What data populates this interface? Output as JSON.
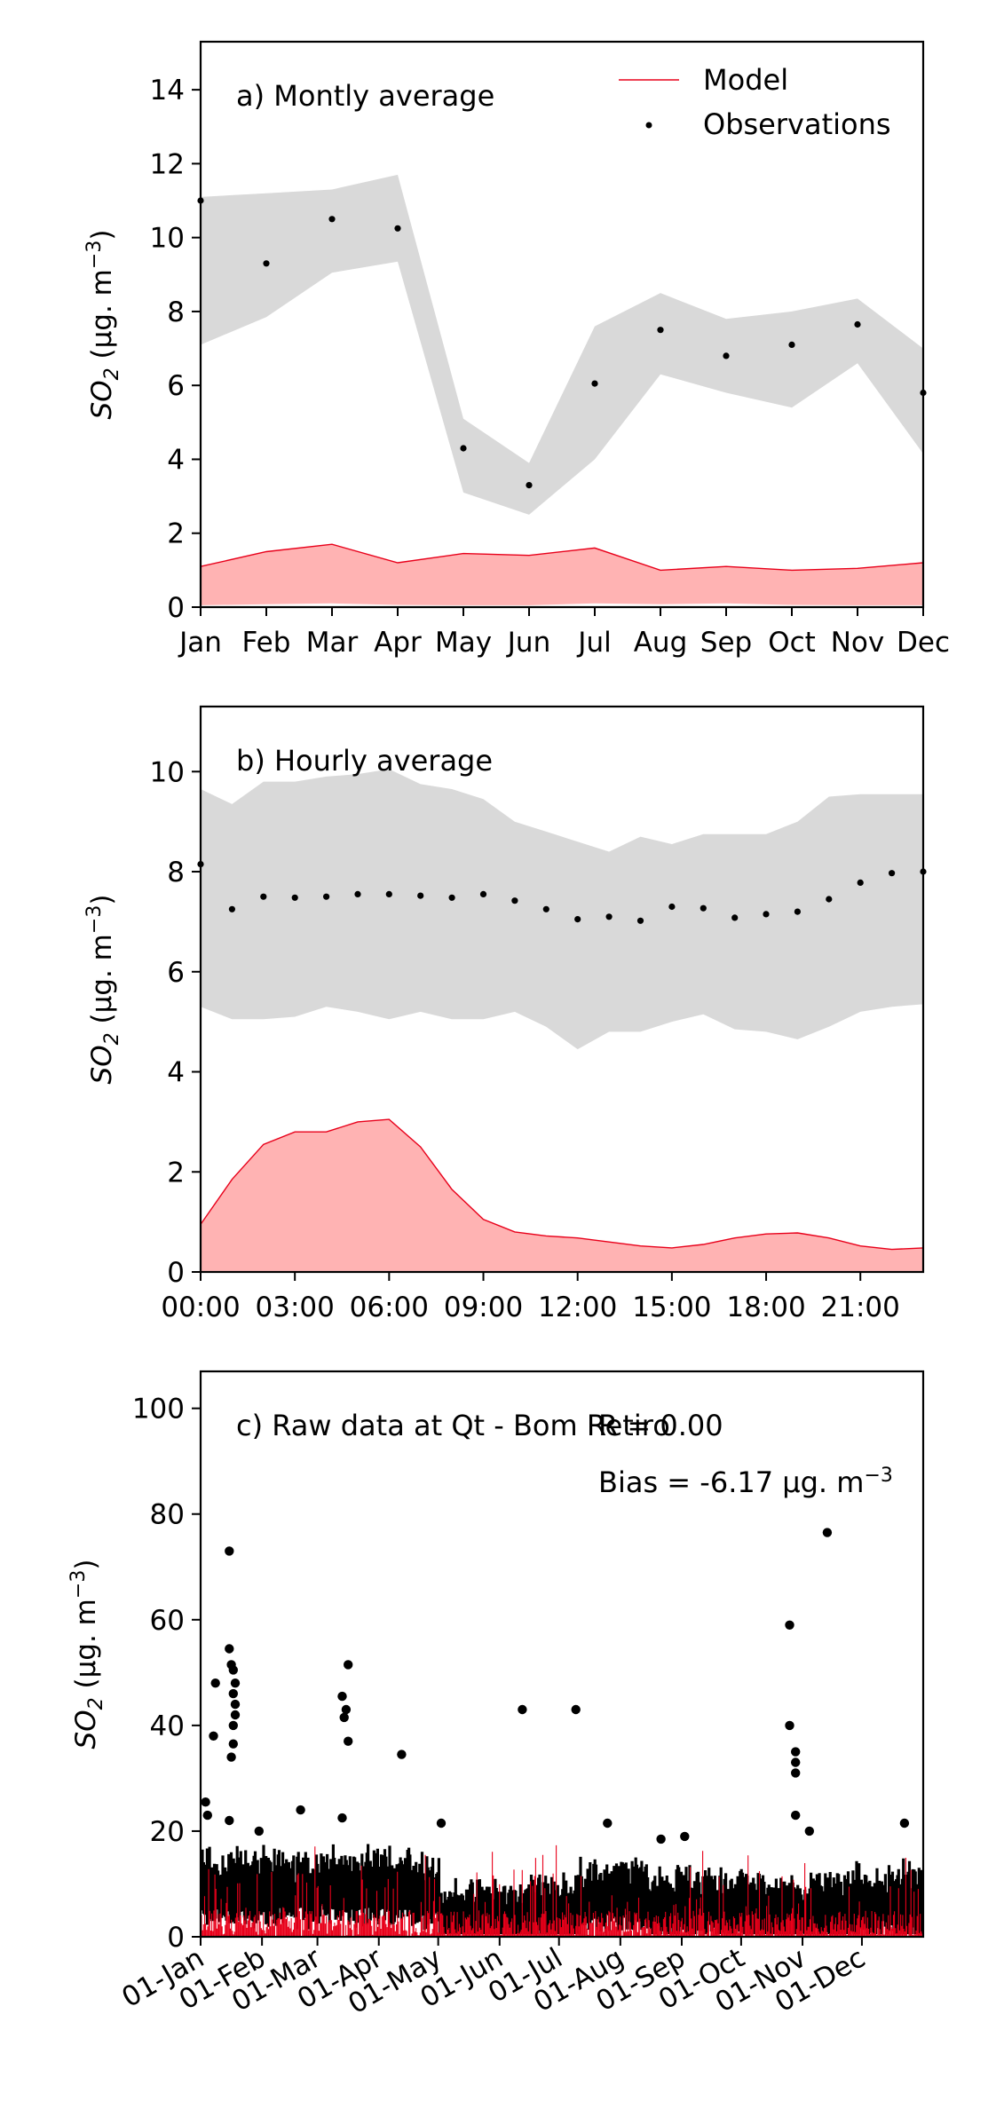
{
  "colors": {
    "model_line": "#e8001a",
    "model_fill": "#ffb3b3",
    "obs_band": "#d9d9d9",
    "obs_point": "#000000",
    "axis": "#000000"
  },
  "chart_data": [
    {
      "id": "monthly",
      "type": "line",
      "panel_label": "a) Montly average",
      "ylabel": "SO",
      "ylabel_sub": "2",
      "ylabel_unit": " (μg. m",
      "ylabel_sup": "−3",
      "ylabel_close": ")",
      "ylim": [
        0,
        15.3
      ],
      "yticks": [
        0,
        2,
        4,
        6,
        8,
        10,
        12,
        14
      ],
      "xlim": [
        0,
        11
      ],
      "xticks": [
        0,
        1,
        2,
        3,
        4,
        5,
        6,
        7,
        8,
        9,
        10,
        11
      ],
      "xtick_labels": [
        "Jan",
        "Feb",
        "Mar",
        "Apr",
        "May",
        "Jun",
        "Jul",
        "Aug",
        "Sep",
        "Oct",
        "Nov",
        "Dec"
      ],
      "legend": {
        "placement": "top-right",
        "model": "Model",
        "observations": "Observations"
      },
      "x": [
        0,
        1,
        2,
        3,
        4,
        5,
        6,
        7,
        8,
        9,
        10,
        11
      ],
      "series": [
        {
          "name": "Model",
          "role": "model",
          "values": [
            1.1,
            1.5,
            1.7,
            1.2,
            1.45,
            1.4,
            1.6,
            1.0,
            1.1,
            1.0,
            1.05,
            1.2
          ],
          "lower": [
            0.05,
            0.08,
            0.1,
            0.06,
            0.05,
            0.05,
            0.1,
            0.08,
            0.1,
            0.06,
            0.05,
            0.05
          ]
        },
        {
          "name": "Observations",
          "role": "obs",
          "values": [
            11.0,
            9.3,
            10.5,
            10.25,
            4.3,
            3.3,
            6.05,
            7.5,
            6.8,
            7.1,
            7.65,
            5.8
          ],
          "upper": [
            11.1,
            11.2,
            11.3,
            11.7,
            5.1,
            3.9,
            7.6,
            8.5,
            7.8,
            8.0,
            8.35,
            7.0
          ],
          "lower": [
            7.1,
            7.85,
            9.05,
            9.35,
            3.1,
            2.5,
            4.0,
            6.3,
            5.8,
            5.4,
            6.6,
            4.15
          ]
        }
      ]
    },
    {
      "id": "hourly",
      "type": "line",
      "panel_label": "b) Hourly average",
      "ylabel": "SO",
      "ylabel_sub": "2",
      "ylabel_unit": " (μg. m",
      "ylabel_sup": "−3",
      "ylabel_close": ")",
      "ylim": [
        0,
        11.3
      ],
      "yticks": [
        0,
        2,
        4,
        6,
        8,
        10
      ],
      "xlim": [
        0,
        23
      ],
      "xticks": [
        0,
        3,
        6,
        9,
        12,
        15,
        18,
        21
      ],
      "xtick_labels": [
        "00:00",
        "03:00",
        "06:00",
        "09:00",
        "12:00",
        "15:00",
        "18:00",
        "21:00"
      ],
      "x": [
        0,
        1,
        2,
        3,
        4,
        5,
        6,
        7,
        8,
        9,
        10,
        11,
        12,
        13,
        14,
        15,
        16,
        17,
        18,
        19,
        20,
        21,
        22,
        23
      ],
      "series": [
        {
          "name": "Model",
          "role": "model",
          "values": [
            0.95,
            1.85,
            2.55,
            2.8,
            2.8,
            3.0,
            3.05,
            2.5,
            1.65,
            1.05,
            0.8,
            0.72,
            0.68,
            0.6,
            0.52,
            0.48,
            0.55,
            0.68,
            0.76,
            0.78,
            0.68,
            0.52,
            0.45,
            0.48
          ],
          "lower": [
            0.02,
            0.02,
            0.02,
            0.02,
            0.02,
            0.02,
            0.02,
            0.02,
            0.02,
            0.02,
            0.02,
            0.02,
            0.02,
            0.02,
            0.02,
            0.02,
            0.02,
            0.02,
            0.02,
            0.02,
            0.02,
            0.02,
            0.02,
            0.02
          ]
        },
        {
          "name": "Observations",
          "role": "obs",
          "values": [
            8.15,
            7.25,
            7.5,
            7.48,
            7.5,
            7.55,
            7.55,
            7.52,
            7.48,
            7.55,
            7.42,
            7.25,
            7.05,
            7.1,
            7.02,
            7.3,
            7.27,
            7.08,
            7.15,
            7.2,
            7.45,
            7.78,
            7.97,
            8.0
          ],
          "upper": [
            9.65,
            9.35,
            9.8,
            9.8,
            9.9,
            9.95,
            10.05,
            9.75,
            9.65,
            9.45,
            9.0,
            8.8,
            8.6,
            8.4,
            8.7,
            8.55,
            8.75,
            8.75,
            8.75,
            9.0,
            9.5,
            9.55,
            9.55,
            9.55
          ],
          "lower": [
            5.3,
            5.05,
            5.05,
            5.1,
            5.3,
            5.2,
            5.05,
            5.2,
            5.05,
            5.05,
            5.2,
            4.9,
            4.45,
            4.8,
            4.8,
            5.0,
            5.15,
            4.85,
            4.8,
            4.65,
            4.9,
            5.2,
            5.3,
            5.35
          ]
        }
      ]
    },
    {
      "id": "raw",
      "type": "scatter",
      "panel_label": "c) Raw data at Qt - Bom Retiro",
      "r_text": "R = 0.00",
      "bias_text": "Bias = -6.17 μg. m",
      "bias_sup": "−3",
      "ylabel": "SO",
      "ylabel_sub": "2",
      "ylabel_unit": " (μg. m",
      "ylabel_sup": "−3",
      "ylabel_close": ")",
      "ylim": [
        0,
        107
      ],
      "yticks": [
        0,
        20,
        40,
        60,
        80,
        100
      ],
      "xlim": [
        "2019-01-01",
        "2019-12-31"
      ],
      "xticks": [
        "2019-01-01",
        "2019-02-01",
        "2019-03-01",
        "2019-04-01",
        "2019-05-01",
        "2019-06-01",
        "2019-07-01",
        "2019-08-01",
        "2019-09-01",
        "2019-10-01",
        "2019-11-01",
        "2019-12-01"
      ],
      "xtick_labels": [
        "01-Jan",
        "01-Feb",
        "01-Mar",
        "01-Apr",
        "01-May",
        "01-Jun",
        "01-Jul",
        "01-Aug",
        "01-Sep",
        "01-Oct",
        "01-Nov",
        "01-Dec"
      ],
      "series": [
        {
          "name": "Model",
          "role": "model",
          "description_of_range": "hourly values between 0 and ~18"
        },
        {
          "name": "Observations",
          "role": "obs",
          "points": [
            [
              "2019-01-08",
              48
            ],
            [
              "2019-01-07",
              38
            ],
            [
              "2019-01-15",
              73
            ],
            [
              "2019-01-15",
              54.5
            ],
            [
              "2019-01-16",
              51.5
            ],
            [
              "2019-01-17",
              50.5
            ],
            [
              "2019-01-18",
              48
            ],
            [
              "2019-01-17",
              46
            ],
            [
              "2019-01-18",
              44
            ],
            [
              "2019-01-18",
              42
            ],
            [
              "2019-01-17",
              40
            ],
            [
              "2019-01-17",
              36.5
            ],
            [
              "2019-01-16",
              34
            ],
            [
              "2019-01-03",
              25.5
            ],
            [
              "2019-01-04",
              23
            ],
            [
              "2019-01-15",
              22
            ],
            [
              "2019-01-30",
              20
            ],
            [
              "2019-02-20",
              24
            ],
            [
              "2019-03-13",
              45.5
            ],
            [
              "2019-03-15",
              43
            ],
            [
              "2019-03-16",
              51.5
            ],
            [
              "2019-03-14",
              41.5
            ],
            [
              "2019-03-16",
              37
            ],
            [
              "2019-03-13",
              22.5
            ],
            [
              "2019-04-12",
              34.5
            ],
            [
              "2019-05-02",
              21.5
            ],
            [
              "2019-06-12",
              43
            ],
            [
              "2019-07-09",
              43
            ],
            [
              "2019-07-25",
              21.5
            ],
            [
              "2019-08-21",
              18.5
            ],
            [
              "2019-09-02",
              19
            ],
            [
              "2019-10-25",
              59
            ],
            [
              "2019-10-25",
              40
            ],
            [
              "2019-10-28",
              35
            ],
            [
              "2019-10-28",
              33
            ],
            [
              "2019-10-28",
              31
            ],
            [
              "2019-10-28",
              23
            ],
            [
              "2019-11-04",
              20
            ],
            [
              "2019-11-13",
              76.5
            ],
            [
              "2019-12-22",
              21.5
            ]
          ]
        }
      ]
    }
  ]
}
